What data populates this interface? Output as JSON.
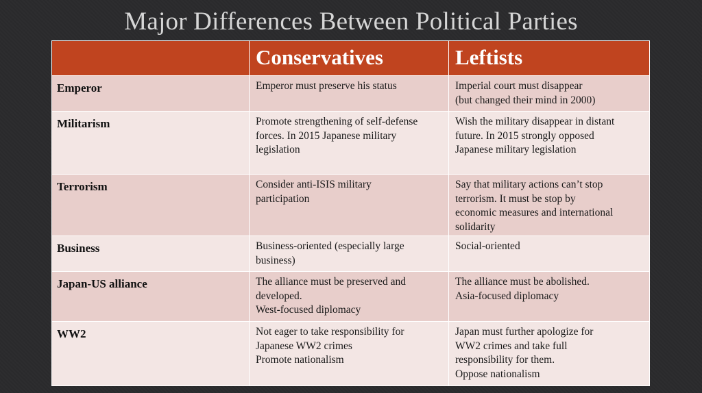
{
  "slide": {
    "title": "Major Differences Between Political Parties"
  },
  "table": {
    "headers": [
      "",
      "Conservatives",
      "Leftists"
    ],
    "rows": [
      {
        "label": "Emperor",
        "conservatives": [
          "Emperor must preserve his status"
        ],
        "leftists": [
          "Imperial court must disappear",
          "(but changed their mind in 2000)"
        ]
      },
      {
        "label": "Militarism",
        "conservatives": [
          "Promote strengthening of self-defense",
          "forces. In 2015 Japanese military",
          "legislation"
        ],
        "leftists": [
          "Wish the military disappear in distant",
          "future. In 2015 strongly opposed",
          "Japanese military legislation"
        ]
      },
      {
        "label": "Terrorism",
        "conservatives": [
          "Consider anti-ISIS military",
          "participation"
        ],
        "leftists": [
          "Say that military actions can’t stop",
          "terrorism.  It must be stop by",
          "economic measures and international",
          "solidarity"
        ]
      },
      {
        "label": "Business",
        "conservatives": [
          "Business-oriented (especially large",
          "business)"
        ],
        "leftists": [
          "Social-oriented"
        ]
      },
      {
        "label": "Japan-US alliance",
        "conservatives": [
          "The alliance must be preserved and",
          "developed.",
          "West-focused diplomacy"
        ],
        "leftists": [
          "The alliance must be abolished.",
          "Asia-focused diplomacy"
        ]
      },
      {
        "label": "WW2",
        "conservatives": [
          "Not eager to take responsibility for",
          "Japanese WW2 crimes",
          "Promote nationalism"
        ],
        "leftists": [
          "Japan must further apologize for",
          "WW2 crimes and take full",
          "responsibility for them.",
          "Oppose nationalism"
        ]
      }
    ]
  },
  "colors": {
    "header_bg": "#c0441f",
    "row_dark": "#e8cecb",
    "row_light": "#f3e6e4",
    "background": "#2b2b2d"
  }
}
